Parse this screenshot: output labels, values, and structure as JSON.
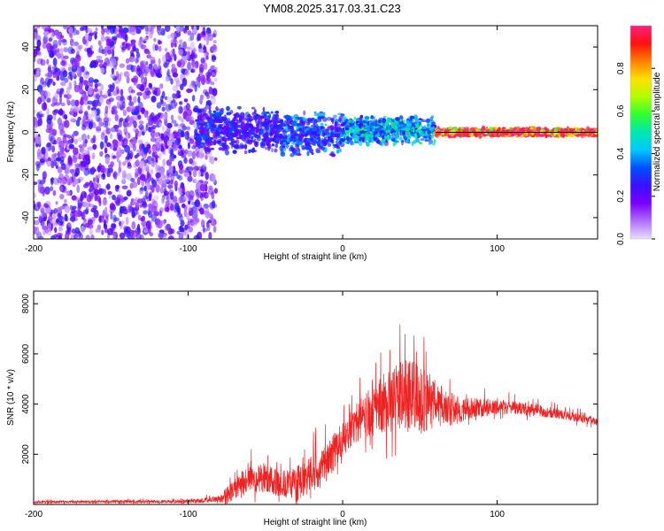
{
  "title": "YM08.2025.317.03.31.C23",
  "colors": {
    "trace": "#ee2222",
    "line_zero": "#000000",
    "colorbar_stops": [
      "#e8e0ff",
      "#b070ff",
      "#7a00ff",
      "#3a10ff",
      "#0050ff",
      "#00c8ff",
      "#00e8b0",
      "#30ff30",
      "#b0ff00",
      "#ffe000",
      "#ff8000",
      "#ff1010",
      "#ff2080"
    ]
  },
  "chart_data": [
    {
      "type": "heatmap",
      "name": "spectrogram",
      "xlabel": "Height of straight line (km)",
      "ylabel": "Frequency (Hz)",
      "xlim": [
        -200,
        165
      ],
      "ylim": [
        -50,
        50
      ],
      "xticks": [
        -200,
        -100,
        0,
        100
      ],
      "yticks": [
        -40,
        -20,
        0,
        20,
        40
      ],
      "colorbar": {
        "label": "Normalized spectral amplitude",
        "range": [
          0,
          1
        ],
        "ticks": [
          "0.0",
          "0.2",
          "0.4",
          "0.6",
          "0.8"
        ],
        "tick_values": [
          0,
          0.2,
          0.4,
          0.6,
          0.8
        ]
      },
      "regions": [
        {
          "x_from": -200,
          "x_to": -82,
          "freq_from": -50,
          "freq_to": 50,
          "level": 0.2,
          "pattern": "scattered noise"
        },
        {
          "x_from": -95,
          "x_to": -40,
          "freq_from": -10,
          "freq_to": 12,
          "level": 0.25
        },
        {
          "x_from": -40,
          "x_to": 0,
          "freq_from": -12,
          "freq_to": 10,
          "level": 0.3
        },
        {
          "x_from": 0,
          "x_to": 60,
          "freq_from": -6,
          "freq_to": 8,
          "level": 0.4
        },
        {
          "x_from": 60,
          "x_to": 165,
          "freq_from": -2,
          "freq_to": 2,
          "level": 0.95
        }
      ]
    },
    {
      "type": "line",
      "name": "snr",
      "xlabel": "Height of straight line (km)",
      "ylabel": "SNR (10 * v/v)",
      "xlim": [
        -200,
        165
      ],
      "ylim": [
        0,
        8500
      ],
      "xticks": [
        -200,
        -100,
        0,
        100
      ],
      "yticks": [
        2000,
        4000,
        6000,
        8000
      ],
      "envelope": {
        "x": [
          -200,
          -100,
          -80,
          -70,
          -60,
          -50,
          -40,
          -30,
          -20,
          -10,
          0,
          10,
          20,
          30,
          40,
          50,
          60,
          70,
          80,
          100,
          120,
          140,
          165
        ],
        "base": [
          100,
          120,
          200,
          600,
          1000,
          1100,
          800,
          800,
          1300,
          1700,
          2600,
          3300,
          3800,
          4100,
          4300,
          4200,
          4000,
          3800,
          3800,
          3900,
          3800,
          3600,
          3300
        ],
        "spread": [
          100,
          120,
          300,
          900,
          1100,
          1200,
          1100,
          1400,
          1600,
          1500,
          1400,
          1600,
          2000,
          2600,
          3000,
          2800,
          2000,
          1400,
          900,
          600,
          500,
          400,
          300
        ]
      }
    }
  ]
}
